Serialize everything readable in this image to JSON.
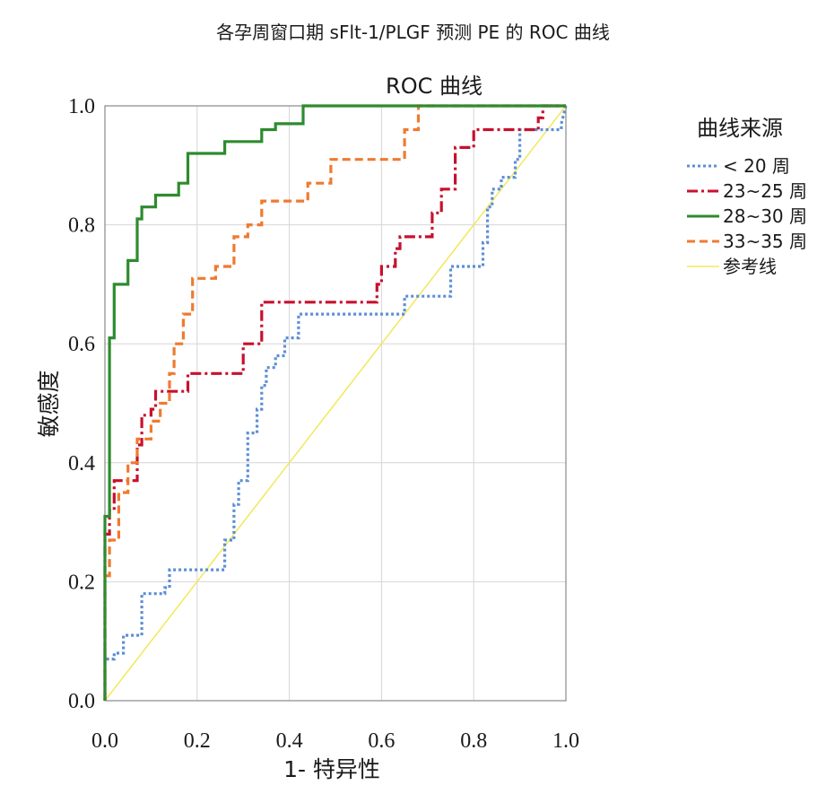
{
  "caption": "各孕周窗口期 sFlt-1/PLGF 预测 PE 的 ROC 曲线",
  "chart_data": {
    "type": "line",
    "title": "ROC 曲线",
    "xlabel": "1- 特异性",
    "ylabel": "敏感度",
    "xlim": [
      0,
      1
    ],
    "ylim": [
      0,
      1
    ],
    "x_ticks": [
      "0.0",
      "0.2",
      "0.4",
      "0.6",
      "0.8",
      "1.0"
    ],
    "y_ticks": [
      "0.0",
      "0.2",
      "0.4",
      "0.6",
      "0.8",
      "1.0"
    ],
    "grid": true,
    "legend_title": "曲线来源",
    "legend_position": "right",
    "series": [
      {
        "name": "< 20 周",
        "color": "#5b8fd4",
        "dash": "dotted",
        "points": [
          [
            0,
            0
          ],
          [
            0,
            0.07
          ],
          [
            0.02,
            0.07
          ],
          [
            0.02,
            0.08
          ],
          [
            0.04,
            0.08
          ],
          [
            0.04,
            0.11
          ],
          [
            0.08,
            0.11
          ],
          [
            0.08,
            0.18
          ],
          [
            0.13,
            0.18
          ],
          [
            0.13,
            0.19
          ],
          [
            0.14,
            0.19
          ],
          [
            0.14,
            0.22
          ],
          [
            0.26,
            0.22
          ],
          [
            0.26,
            0.27
          ],
          [
            0.28,
            0.27
          ],
          [
            0.28,
            0.33
          ],
          [
            0.29,
            0.33
          ],
          [
            0.29,
            0.37
          ],
          [
            0.31,
            0.37
          ],
          [
            0.31,
            0.45
          ],
          [
            0.33,
            0.45
          ],
          [
            0.33,
            0.49
          ],
          [
            0.34,
            0.49
          ],
          [
            0.34,
            0.53
          ],
          [
            0.35,
            0.53
          ],
          [
            0.35,
            0.56
          ],
          [
            0.37,
            0.56
          ],
          [
            0.37,
            0.58
          ],
          [
            0.39,
            0.58
          ],
          [
            0.39,
            0.61
          ],
          [
            0.42,
            0.61
          ],
          [
            0.42,
            0.65
          ],
          [
            0.65,
            0.65
          ],
          [
            0.65,
            0.68
          ],
          [
            0.75,
            0.68
          ],
          [
            0.75,
            0.73
          ],
          [
            0.82,
            0.73
          ],
          [
            0.82,
            0.77
          ],
          [
            0.83,
            0.77
          ],
          [
            0.83,
            0.83
          ],
          [
            0.84,
            0.83
          ],
          [
            0.84,
            0.86
          ],
          [
            0.86,
            0.86
          ],
          [
            0.86,
            0.88
          ],
          [
            0.89,
            0.88
          ],
          [
            0.89,
            0.91
          ],
          [
            0.9,
            0.91
          ],
          [
            0.9,
            0.96
          ],
          [
            0.99,
            0.96
          ],
          [
            0.99,
            0.97
          ],
          [
            1,
            1
          ]
        ]
      },
      {
        "name": "23~25 周",
        "color": "#c8102e",
        "dash": "dashdot",
        "points": [
          [
            0,
            0
          ],
          [
            0,
            0.28
          ],
          [
            0.01,
            0.28
          ],
          [
            0.01,
            0.32
          ],
          [
            0.02,
            0.32
          ],
          [
            0.02,
            0.37
          ],
          [
            0.07,
            0.37
          ],
          [
            0.07,
            0.43
          ],
          [
            0.08,
            0.43
          ],
          [
            0.08,
            0.48
          ],
          [
            0.1,
            0.48
          ],
          [
            0.1,
            0.49
          ],
          [
            0.11,
            0.49
          ],
          [
            0.11,
            0.52
          ],
          [
            0.18,
            0.52
          ],
          [
            0.18,
            0.55
          ],
          [
            0.3,
            0.55
          ],
          [
            0.3,
            0.6
          ],
          [
            0.34,
            0.6
          ],
          [
            0.34,
            0.67
          ],
          [
            0.59,
            0.67
          ],
          [
            0.59,
            0.7
          ],
          [
            0.6,
            0.7
          ],
          [
            0.6,
            0.73
          ],
          [
            0.63,
            0.73
          ],
          [
            0.63,
            0.76
          ],
          [
            0.64,
            0.76
          ],
          [
            0.64,
            0.78
          ],
          [
            0.71,
            0.78
          ],
          [
            0.71,
            0.82
          ],
          [
            0.73,
            0.82
          ],
          [
            0.73,
            0.86
          ],
          [
            0.76,
            0.86
          ],
          [
            0.76,
            0.93
          ],
          [
            0.8,
            0.93
          ],
          [
            0.8,
            0.96
          ],
          [
            0.94,
            0.96
          ],
          [
            0.94,
            0.98
          ],
          [
            0.95,
            0.98
          ],
          [
            0.95,
            1
          ],
          [
            1,
            1
          ]
        ]
      },
      {
        "name": "28~30 周",
        "color": "#2e8b2e",
        "dash": "solid",
        "points": [
          [
            0,
            0
          ],
          [
            0,
            0.31
          ],
          [
            0.01,
            0.31
          ],
          [
            0.01,
            0.61
          ],
          [
            0.02,
            0.61
          ],
          [
            0.02,
            0.7
          ],
          [
            0.05,
            0.7
          ],
          [
            0.05,
            0.74
          ],
          [
            0.07,
            0.74
          ],
          [
            0.07,
            0.81
          ],
          [
            0.08,
            0.81
          ],
          [
            0.08,
            0.83
          ],
          [
            0.11,
            0.83
          ],
          [
            0.11,
            0.85
          ],
          [
            0.16,
            0.85
          ],
          [
            0.16,
            0.87
          ],
          [
            0.18,
            0.87
          ],
          [
            0.18,
            0.92
          ],
          [
            0.26,
            0.92
          ],
          [
            0.26,
            0.94
          ],
          [
            0.34,
            0.94
          ],
          [
            0.34,
            0.96
          ],
          [
            0.37,
            0.96
          ],
          [
            0.37,
            0.97
          ],
          [
            0.43,
            0.97
          ],
          [
            0.43,
            1
          ],
          [
            1,
            1
          ]
        ]
      },
      {
        "name": "33~35 周",
        "color": "#ef7a2f",
        "dash": "dashed",
        "points": [
          [
            0,
            0
          ],
          [
            0,
            0.21
          ],
          [
            0.01,
            0.21
          ],
          [
            0.01,
            0.27
          ],
          [
            0.03,
            0.27
          ],
          [
            0.03,
            0.35
          ],
          [
            0.05,
            0.35
          ],
          [
            0.05,
            0.4
          ],
          [
            0.07,
            0.4
          ],
          [
            0.07,
            0.44
          ],
          [
            0.1,
            0.44
          ],
          [
            0.1,
            0.47
          ],
          [
            0.12,
            0.47
          ],
          [
            0.12,
            0.5
          ],
          [
            0.14,
            0.5
          ],
          [
            0.14,
            0.55
          ],
          [
            0.15,
            0.55
          ],
          [
            0.15,
            0.6
          ],
          [
            0.17,
            0.6
          ],
          [
            0.17,
            0.65
          ],
          [
            0.19,
            0.65
          ],
          [
            0.19,
            0.71
          ],
          [
            0.24,
            0.71
          ],
          [
            0.24,
            0.73
          ],
          [
            0.28,
            0.73
          ],
          [
            0.28,
            0.78
          ],
          [
            0.31,
            0.78
          ],
          [
            0.31,
            0.8
          ],
          [
            0.34,
            0.8
          ],
          [
            0.34,
            0.84
          ],
          [
            0.44,
            0.84
          ],
          [
            0.44,
            0.87
          ],
          [
            0.49,
            0.87
          ],
          [
            0.49,
            0.91
          ],
          [
            0.65,
            0.91
          ],
          [
            0.65,
            0.96
          ],
          [
            0.68,
            0.96
          ],
          [
            0.68,
            1
          ],
          [
            1,
            1
          ]
        ]
      },
      {
        "name": "参考线",
        "color": "#f2e85a",
        "dash": "solid",
        "points": [
          [
            0,
            0
          ],
          [
            1,
            1
          ]
        ]
      }
    ]
  }
}
